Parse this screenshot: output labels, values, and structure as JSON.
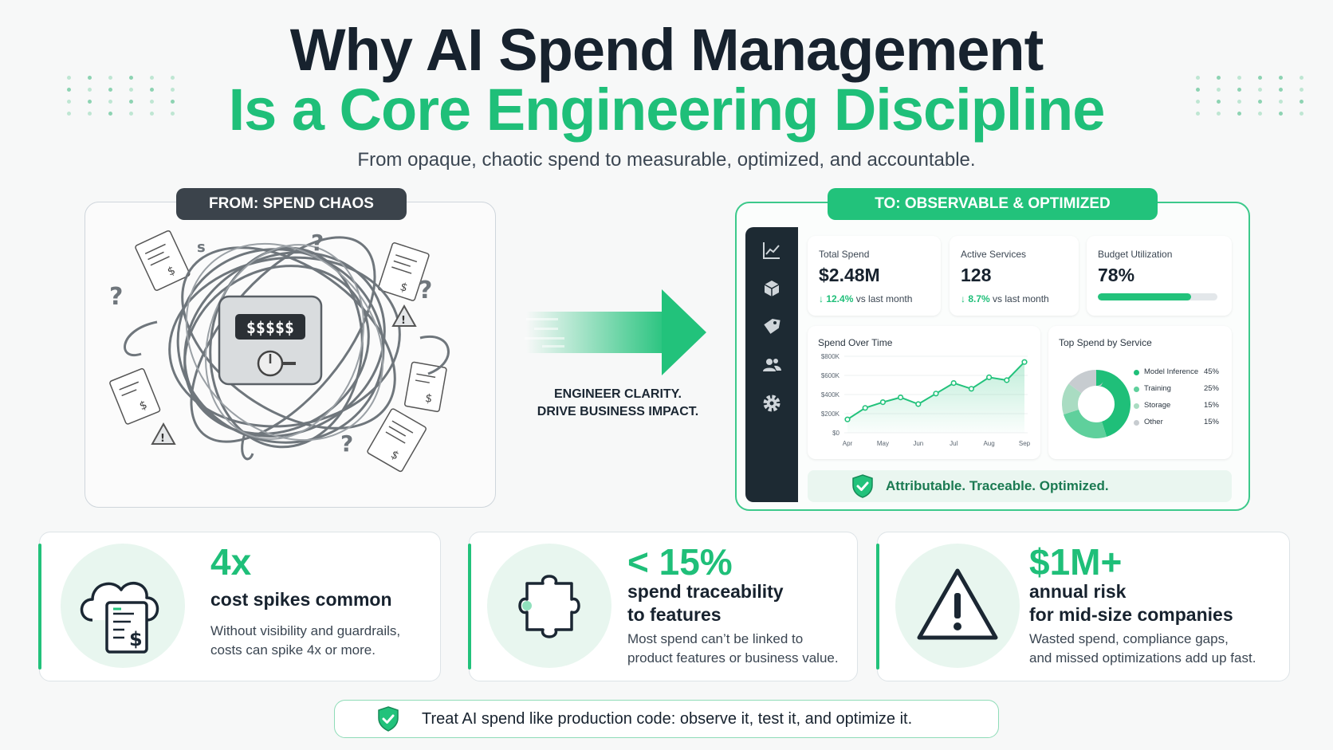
{
  "header": {
    "title_line1": "Why AI Spend Management",
    "title_line2": "Is a Core Engineering Discipline",
    "subtitle": "From opaque, chaotic spend to measurable, optimized, and accountable."
  },
  "from_panel": {
    "pill_label": "FROM: SPEND CHAOS",
    "meter_text": "$$$$$",
    "icons": [
      "tangled-cables-icon",
      "meter-icon",
      "invoice-icon",
      "question-icon",
      "warning-icon"
    ]
  },
  "transition": {
    "line1": "ENGINEER CLARITY.",
    "line2": "DRIVE BUSINESS IMPACT."
  },
  "to_panel": {
    "pill_label": "TO: OBSERVABLE & OPTIMIZED",
    "sidebar_icons": [
      "chart-line-icon",
      "cube-icon",
      "tag-icon",
      "users-icon",
      "gear-icon"
    ],
    "kpis": {
      "total_spend": {
        "label": "Total Spend",
        "value": "$2.48M",
        "delta": "↓ 12.4%",
        "delta_suffix": "vs last month"
      },
      "active_services": {
        "label": "Active Services",
        "value": "128",
        "delta": "↓ 8.7%",
        "delta_suffix": "vs last month"
      },
      "budget_utilization": {
        "label": "Budget Utilization",
        "value": "78%",
        "fraction": 0.78
      }
    },
    "spend_chart": {
      "title": "Spend Over Time",
      "y_ticks": [
        "$800K",
        "$600K",
        "$400K",
        "$200K",
        "$0"
      ],
      "x_ticks": [
        "Apr",
        "May",
        "Jun",
        "Jul",
        "Aug",
        "Sep"
      ]
    },
    "service_chart": {
      "title": "Top Spend by Service",
      "items": [
        {
          "name": "Model Inference",
          "pct": "45%",
          "value": 45,
          "color": "#1fbf79"
        },
        {
          "name": "Training",
          "pct": "25%",
          "value": 25,
          "color": "#5fd09c"
        },
        {
          "name": "Storage",
          "pct": "15%",
          "value": 15,
          "color": "#a9dcc2"
        },
        {
          "name": "Other",
          "pct": "15%",
          "value": 15,
          "color": "#c7ccd0"
        }
      ]
    },
    "footer": "Attributable. Traceable. Optimized."
  },
  "chart_data": {
    "type": "line",
    "title": "Spend Over Time",
    "x": [
      "Apr",
      "",
      "May",
      "",
      "Jun",
      "",
      "Jul",
      "",
      "Aug",
      "",
      "Sep"
    ],
    "ylim": [
      0,
      800000
    ],
    "y_ticks": [
      "$800K",
      "$600K",
      "$400K",
      "$200K",
      "$0"
    ],
    "series": [
      {
        "values": [
          140000,
          260000,
          320000,
          370000,
          300000,
          410000,
          520000,
          460000,
          580000,
          550000,
          740000
        ]
      }
    ]
  },
  "stats": [
    {
      "big": "4x",
      "head_line1": "cost spikes common",
      "head_line2": "",
      "body_line1": "Without visibility and guardrails,",
      "body_line2": "costs can spike 4x or more.",
      "icon": "cloud-invoice-icon"
    },
    {
      "big": "< 15%",
      "head_line1": "spend traceability",
      "head_line2": "to features",
      "body_line1": "Most spend can’t be linked to",
      "body_line2": "product features or business value.",
      "icon": "puzzle-piece-icon"
    },
    {
      "big": "$1M+",
      "head_line1": "annual risk",
      "head_line2": "for mid-size companies",
      "body_line1": "Wasted spend, compliance gaps,",
      "body_line2": "and missed optimizations add up fast.",
      "icon": "warning-icon"
    }
  ],
  "banner": {
    "text": "Treat AI spend like production code: observe it, test it, and optimize it."
  },
  "colors": {
    "accent": "#1fbf79",
    "dark": "#17222e",
    "panel_dark": "#3b434b"
  }
}
